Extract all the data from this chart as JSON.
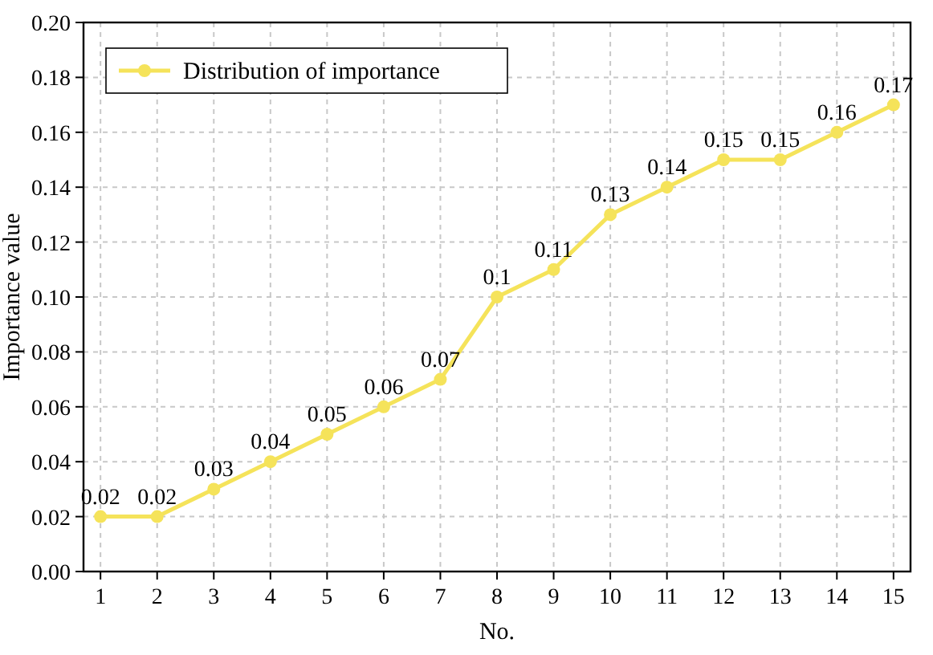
{
  "chart_data": {
    "type": "line",
    "xlabel": "No.",
    "ylabel": "Importance value",
    "x": [
      1,
      2,
      3,
      4,
      5,
      6,
      7,
      8,
      9,
      10,
      11,
      12,
      13,
      14,
      15
    ],
    "series": [
      {
        "name": "Distribution of importance",
        "color": "#f5e35a",
        "values": [
          0.02,
          0.02,
          0.03,
          0.04,
          0.05,
          0.06,
          0.07,
          0.1,
          0.11,
          0.13,
          0.14,
          0.15,
          0.15,
          0.16,
          0.17
        ]
      }
    ],
    "xlim": [
      0.7,
      15.3
    ],
    "xticks": [
      1,
      2,
      3,
      4,
      5,
      6,
      7,
      8,
      9,
      10,
      11,
      12,
      13,
      14,
      15
    ],
    "ylim": [
      0,
      0.2
    ],
    "yticks": [
      {
        "value": 0,
        "label": "0.00"
      },
      {
        "value": 0.02,
        "label": "0.02"
      },
      {
        "value": 0.04,
        "label": "0.04"
      },
      {
        "value": 0.06,
        "label": "0.06"
      },
      {
        "value": 0.08,
        "label": "0.08"
      },
      {
        "value": 0.1,
        "label": "0.10"
      },
      {
        "value": 0.12,
        "label": "0.12"
      },
      {
        "value": 0.14,
        "label": "0.14"
      },
      {
        "value": 0.16,
        "label": "0.16"
      },
      {
        "value": 0.18,
        "label": "0.18"
      },
      {
        "value": 0.2,
        "label": "0.20"
      }
    ],
    "grid": true,
    "legend": "top left",
    "marker": "circle",
    "line_style": "solid",
    "data_labels": true
  }
}
